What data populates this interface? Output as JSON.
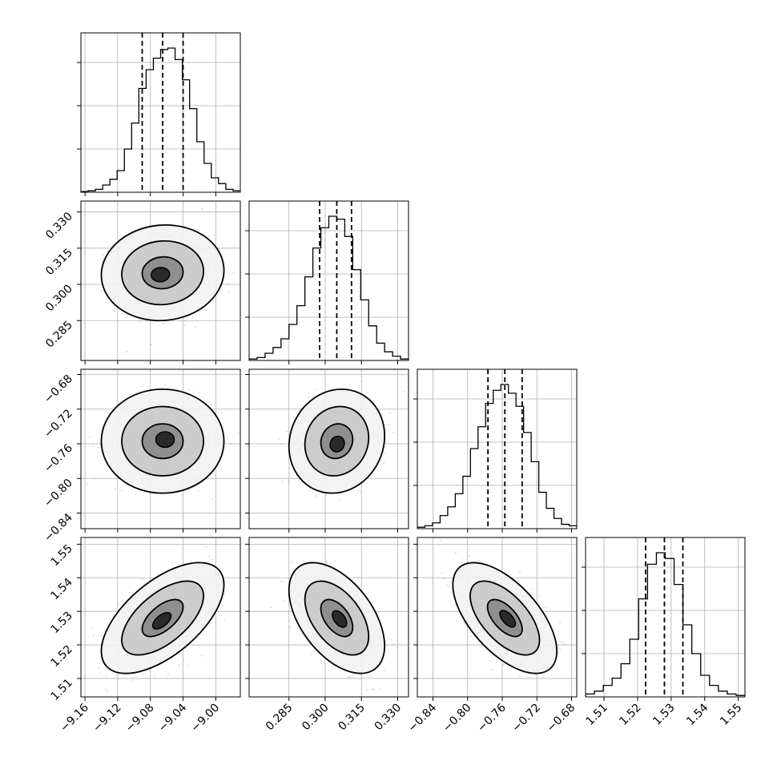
{
  "chart_data": {
    "type": "scatter",
    "title": "",
    "parameters": [
      {
        "ticks": [
          -9.16,
          -9.12,
          -9.08,
          -9.04,
          -9.0
        ],
        "tick_labels": [
          "−9.16",
          "−9.12",
          "−9.08",
          "−9.04",
          "−9.00"
        ],
        "range": [
          -9.165,
          -8.97
        ],
        "median": -9.065,
        "q16": -9.09,
        "q84": -9.04,
        "sigma": 0.025,
        "hist": [
          0.5,
          1,
          2,
          5,
          9,
          15,
          30,
          48,
          72,
          85,
          93,
          99,
          100,
          92,
          78,
          58,
          35,
          20,
          10,
          6,
          2,
          1
        ]
      },
      {
        "ticks": [
          0.285,
          0.3,
          0.315,
          0.33
        ],
        "tick_labels": [
          "0.285",
          "0.300",
          "0.315",
          "0.330"
        ],
        "range": [
          0.2685,
          0.3345
        ],
        "median": 0.3048,
        "q16": 0.2977,
        "q84": 0.3109,
        "sigma": 0.0066,
        "hist": [
          1,
          2,
          5,
          9,
          15,
          25,
          38,
          58,
          78,
          92,
          100,
          98,
          86,
          63,
          42,
          24,
          12,
          6,
          3,
          1
        ]
      },
      {
        "ticks": [
          -0.84,
          -0.8,
          -0.76,
          -0.72,
          -0.68
        ],
        "tick_labels": [
          "−0.84",
          "−0.80",
          "−0.76",
          "−0.72",
          "−0.68"
        ],
        "range": [
          -0.858,
          -0.674
        ],
        "median": -0.757,
        "q16": -0.7765,
        "q84": -0.737,
        "sigma": 0.02,
        "hist": [
          1,
          2,
          4,
          9,
          15,
          24,
          36,
          55,
          70,
          86,
          95,
          99,
          93,
          84,
          66,
          46,
          25,
          14,
          7,
          3,
          2
        ]
      },
      {
        "ticks": [
          1.51,
          1.52,
          1.53,
          1.54,
          1.55
        ],
        "tick_labels": [
          "1.51",
          "1.52",
          "1.53",
          "1.54",
          "1.55"
        ],
        "range": [
          1.5045,
          1.552
        ],
        "median": 1.528,
        "q16": 1.5224,
        "q84": 1.5335,
        "sigma": 0.0055,
        "hist": [
          2,
          4,
          8,
          13,
          23,
          40,
          68,
          92,
          100,
          96,
          78,
          50,
          30,
          15,
          8,
          4,
          2,
          1
        ]
      }
    ],
    "correlations": {
      "1-0": 0.05,
      "2-0": 0.0,
      "2-1": 0.1,
      "3-0": 0.6,
      "3-1": -0.5,
      "3-2": -0.6
    },
    "hist_y_ticks": 3,
    "contour_levels": [
      0.393,
      0.865,
      0.989
    ],
    "quantiles": [
      0.16,
      0.5,
      0.84
    ],
    "grid": true,
    "xlabel": "",
    "ylabel": ""
  }
}
